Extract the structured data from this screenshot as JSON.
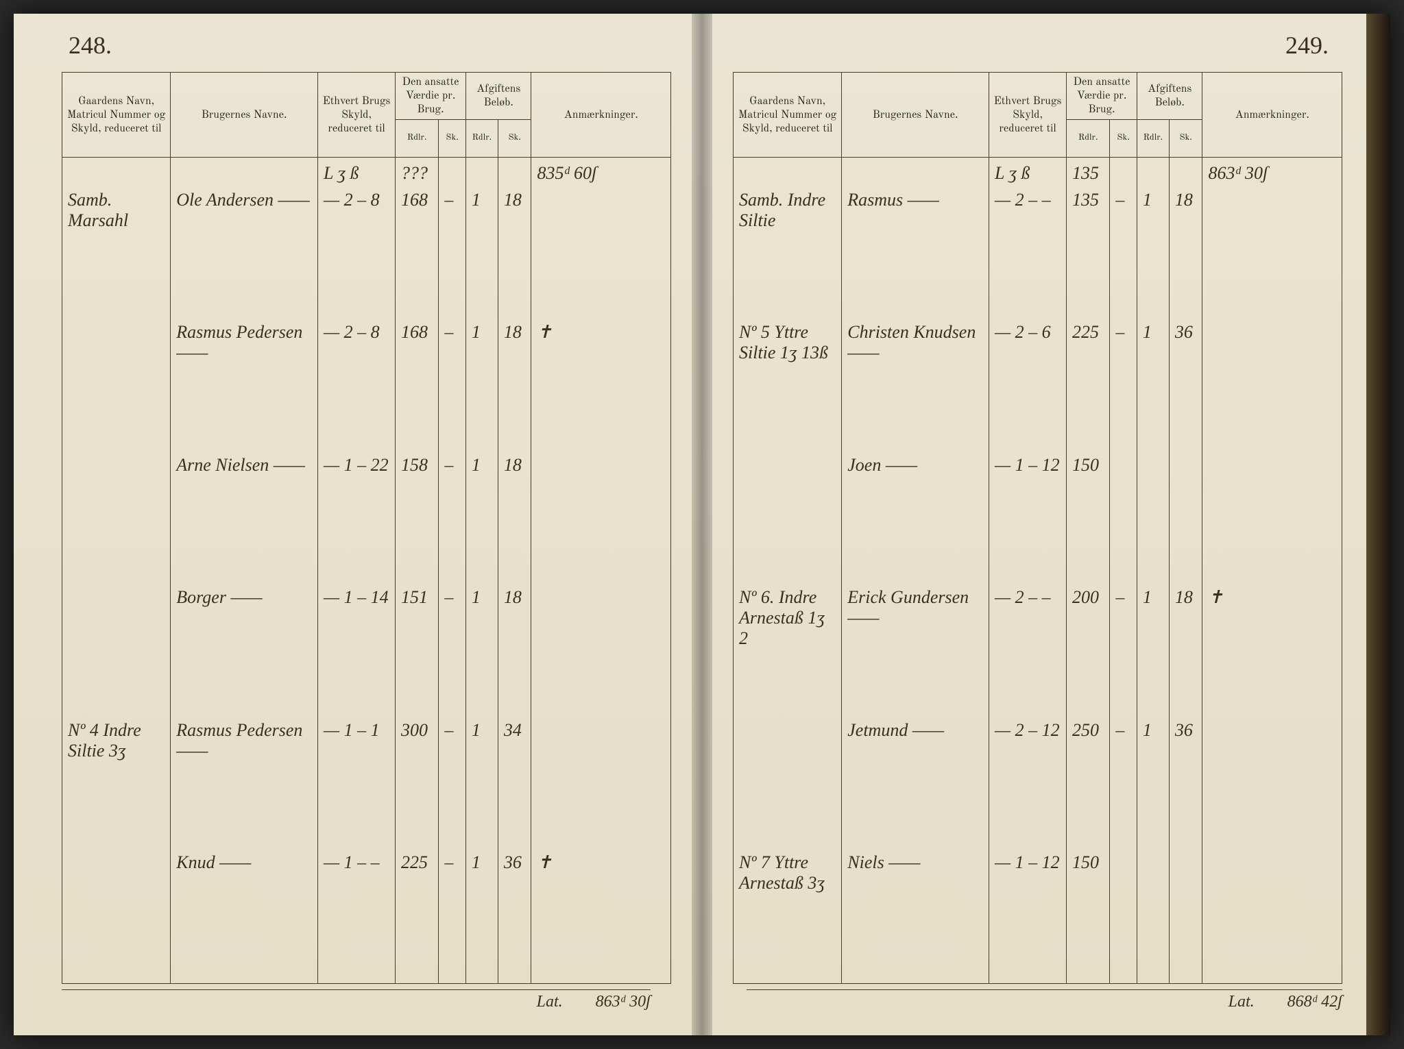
{
  "left_page_number": "248.",
  "right_page_number": "249.",
  "headers": {
    "gaard": "Gaardens Navn, Matricul Nummer og Skyld, reduceret til",
    "bruger": "Brugernes Navne.",
    "skyld": "Ethvert Brugs Skyld, reduceret til",
    "vaerdie": "Den ansatte Værdie pr. Brug.",
    "afgift": "Afgiftens Beløb.",
    "anm": "Anmærkninger.",
    "sub_rdlr": "Rdlr.",
    "sub_sk": "Sk.",
    "skyld_sub": "L   ʒ   ß"
  },
  "left": {
    "carry_skyld": "",
    "carry_vaerdie": "???",
    "carry_anm": "835ᵈ 60ʃ",
    "rows": [
      {
        "gaard": "Samb. Marsahl",
        "bruger": "Ole Andersen",
        "skyld": "— 2 – 8",
        "vaerdie": "168",
        "v_sk": "–",
        "afg": "1",
        "afg_sk": "18",
        "anm": ""
      },
      {
        "gaard": "",
        "bruger": "Rasmus Pedersen",
        "skyld": "— 2 – 8",
        "vaerdie": "168",
        "v_sk": "–",
        "afg": "1",
        "afg_sk": "18",
        "anm": "✝"
      },
      {
        "gaard": "",
        "bruger": "Arne Nielsen",
        "skyld": "— 1 – 22",
        "vaerdie": "158",
        "v_sk": "–",
        "afg": "1",
        "afg_sk": "18",
        "anm": ""
      },
      {
        "gaard": "",
        "bruger": "Borger",
        "skyld": "— 1 – 14",
        "vaerdie": "151",
        "v_sk": "–",
        "afg": "1",
        "afg_sk": "18",
        "anm": ""
      },
      {
        "gaard": "Nº 4 Indre Siltie 3ʒ",
        "bruger": "Rasmus Pedersen",
        "skyld": "— 1 – 1",
        "vaerdie": "300",
        "v_sk": "–",
        "afg": "1",
        "afg_sk": "34",
        "anm": ""
      },
      {
        "gaard": "",
        "bruger": "Knud",
        "skyld": "— 1 – –",
        "vaerdie": "225",
        "v_sk": "–",
        "afg": "1",
        "afg_sk": "36",
        "anm": "✝"
      }
    ],
    "footer_label": "Lat.",
    "footer_total": "863ᵈ 30ʃ"
  },
  "right": {
    "carry_skyld": "",
    "carry_vaerdie": "135",
    "carry_anm": "863ᵈ 30ʃ",
    "rows": [
      {
        "gaard": "Samb. Indre Siltie",
        "bruger": "Rasmus",
        "skyld": "— 2 – –",
        "vaerdie": "135",
        "v_sk": "–",
        "afg": "1",
        "afg_sk": "18",
        "anm": ""
      },
      {
        "gaard": "Nº 5 Yttre Siltie 1ʒ 13ß",
        "bruger": "Christen Knudsen",
        "skyld": "— 2 – 6",
        "vaerdie": "225",
        "v_sk": "–",
        "afg": "1",
        "afg_sk": "36",
        "anm": ""
      },
      {
        "gaard": "",
        "bruger": "Joen",
        "skyld": "— 1 – 12",
        "vaerdie": "150",
        "v_sk": "",
        "afg": "",
        "afg_sk": "",
        "anm": ""
      },
      {
        "gaard": "Nº 6. Indre Arnestaß 1ʒ 2",
        "bruger": "Erick Gundersen",
        "skyld": "— 2 – –",
        "vaerdie": "200",
        "v_sk": "–",
        "afg": "1",
        "afg_sk": "18",
        "anm": "✝"
      },
      {
        "gaard": "",
        "bruger": "Jetmund",
        "skyld": "— 2 – 12",
        "vaerdie": "250",
        "v_sk": "–",
        "afg": "1",
        "afg_sk": "36",
        "anm": ""
      },
      {
        "gaard": "Nº 7 Yttre Arnestaß 3ʒ",
        "bruger": "Niels",
        "skyld": "— 1 – 12",
        "vaerdie": "150",
        "v_sk": "",
        "afg": "",
        "afg_sk": "",
        "anm": ""
      }
    ],
    "footer_label": "Lat.",
    "footer_total": "868ᵈ 42ʃ"
  }
}
